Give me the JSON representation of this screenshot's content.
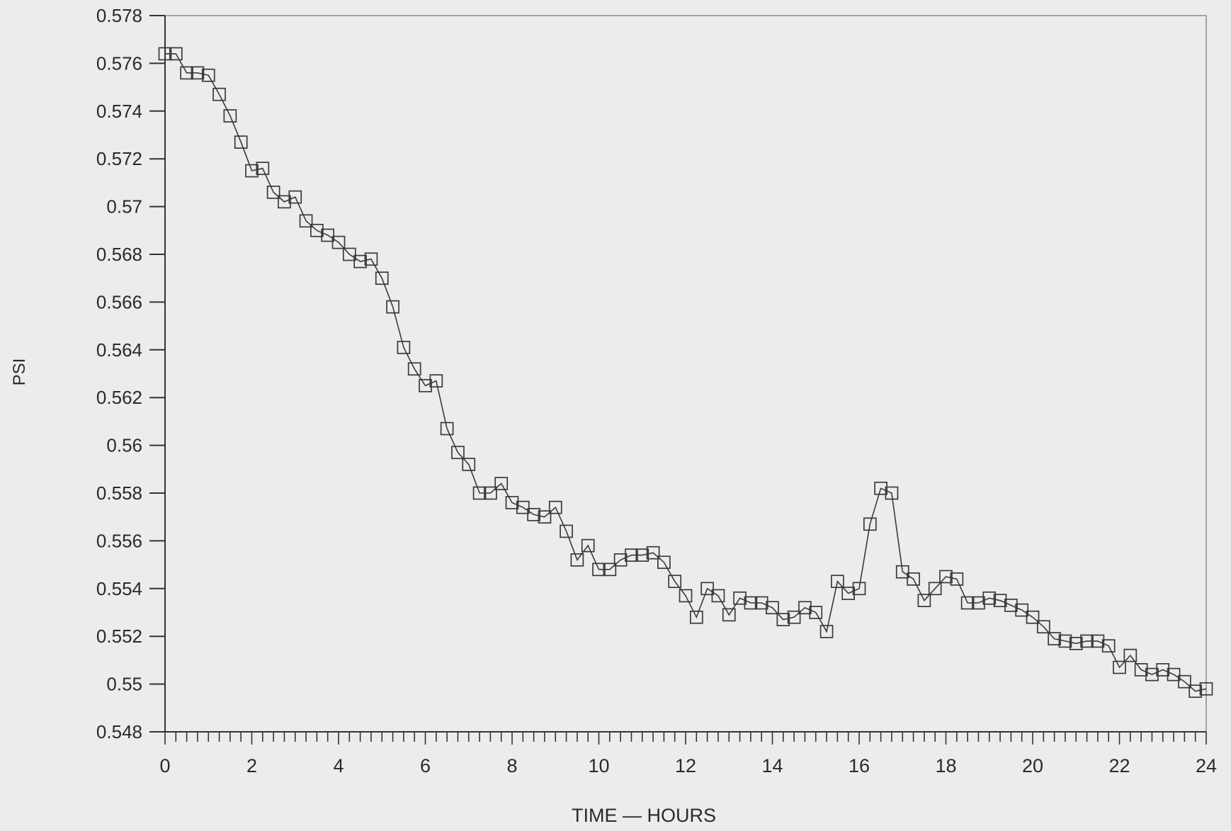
{
  "chart_data": {
    "type": "line",
    "title": "",
    "xlabel": "TIME — HOURS",
    "ylabel": "PSI",
    "xlim": [
      0,
      24
    ],
    "ylim": [
      0.548,
      0.578
    ],
    "x_ticks": [
      0,
      2,
      4,
      6,
      8,
      10,
      12,
      14,
      16,
      18,
      20,
      22,
      24
    ],
    "x_tick_labels": [
      "0",
      "2",
      "4",
      "6",
      "8",
      "10",
      "12",
      "14",
      "16",
      "18",
      "20",
      "22",
      "24"
    ],
    "x_minor_step": 0.25,
    "y_ticks": [
      0.548,
      0.55,
      0.552,
      0.554,
      0.556,
      0.558,
      0.56,
      0.562,
      0.564,
      0.566,
      0.568,
      0.57,
      0.572,
      0.574,
      0.576,
      0.578
    ],
    "y_tick_labels": [
      "0.548",
      "0.55",
      "0.552",
      "0.554",
      "0.556",
      "0.558",
      "0.56",
      "0.562",
      "0.564",
      "0.566",
      "0.568",
      "0.57",
      "0.572",
      "0.574",
      "0.576",
      "0.578"
    ],
    "grid": false,
    "legend": "none",
    "marker": "open-square",
    "line_color": "#3a3a3a",
    "series": [
      {
        "x": [
          0,
          0.25,
          0.5,
          0.75,
          1,
          1.25,
          1.5,
          1.75,
          2,
          2.25,
          2.5,
          2.75,
          3,
          3.25,
          3.5,
          3.75,
          4,
          4.25,
          4.5,
          4.75,
          5,
          5.25,
          5.5,
          5.75,
          6,
          6.25,
          6.5,
          6.75,
          7,
          7.25,
          7.5,
          7.75,
          8,
          8.25,
          8.5,
          8.75,
          9,
          9.25,
          9.5,
          9.75,
          10,
          10.25,
          10.5,
          10.75,
          11,
          11.25,
          11.5,
          11.75,
          12,
          12.25,
          12.5,
          12.75,
          13,
          13.25,
          13.5,
          13.75,
          14,
          14.25,
          14.5,
          14.75,
          15,
          15.25,
          15.5,
          15.75,
          16,
          16.25,
          16.5,
          16.75,
          17,
          17.25,
          17.5,
          17.75,
          18,
          18.25,
          18.5,
          18.75,
          19,
          19.25,
          19.5,
          19.75,
          20,
          20.25,
          20.5,
          20.75,
          21,
          21.25,
          21.5,
          21.75,
          22,
          22.25,
          22.5,
          22.75,
          23,
          23.25,
          23.5,
          23.75,
          24
        ],
        "values": [
          0.5764,
          0.5764,
          0.5756,
          0.5756,
          0.5755,
          0.5747,
          0.5738,
          0.5727,
          0.5715,
          0.5716,
          0.5706,
          0.5702,
          0.5704,
          0.5694,
          0.569,
          0.5688,
          0.5685,
          0.568,
          0.5677,
          0.5678,
          0.567,
          0.5658,
          0.5641,
          0.5632,
          0.5625,
          0.5627,
          0.5607,
          0.5597,
          0.5592,
          0.558,
          0.558,
          0.5584,
          0.5576,
          0.5574,
          0.5571,
          0.557,
          0.5574,
          0.5564,
          0.5552,
          0.5558,
          0.5548,
          0.5548,
          0.5552,
          0.5554,
          0.5554,
          0.5555,
          0.5551,
          0.5543,
          0.5537,
          0.5528,
          0.554,
          0.5537,
          0.5529,
          0.5536,
          0.5534,
          0.5534,
          0.5532,
          0.5527,
          0.5528,
          0.5532,
          0.553,
          0.5522,
          0.5543,
          0.5538,
          0.554,
          0.5567,
          0.5582,
          0.558,
          0.5547,
          0.5544,
          0.5535,
          0.554,
          0.5545,
          0.5544,
          0.5534,
          0.5534,
          0.5536,
          0.5535,
          0.5533,
          0.5531,
          0.5528,
          0.5524,
          0.5519,
          0.5518,
          0.5517,
          0.5518,
          0.5518,
          0.5516,
          0.5507,
          0.5512,
          0.5506,
          0.5504,
          0.5506,
          0.5504,
          0.5501,
          0.5497,
          0.5498
        ]
      }
    ]
  }
}
